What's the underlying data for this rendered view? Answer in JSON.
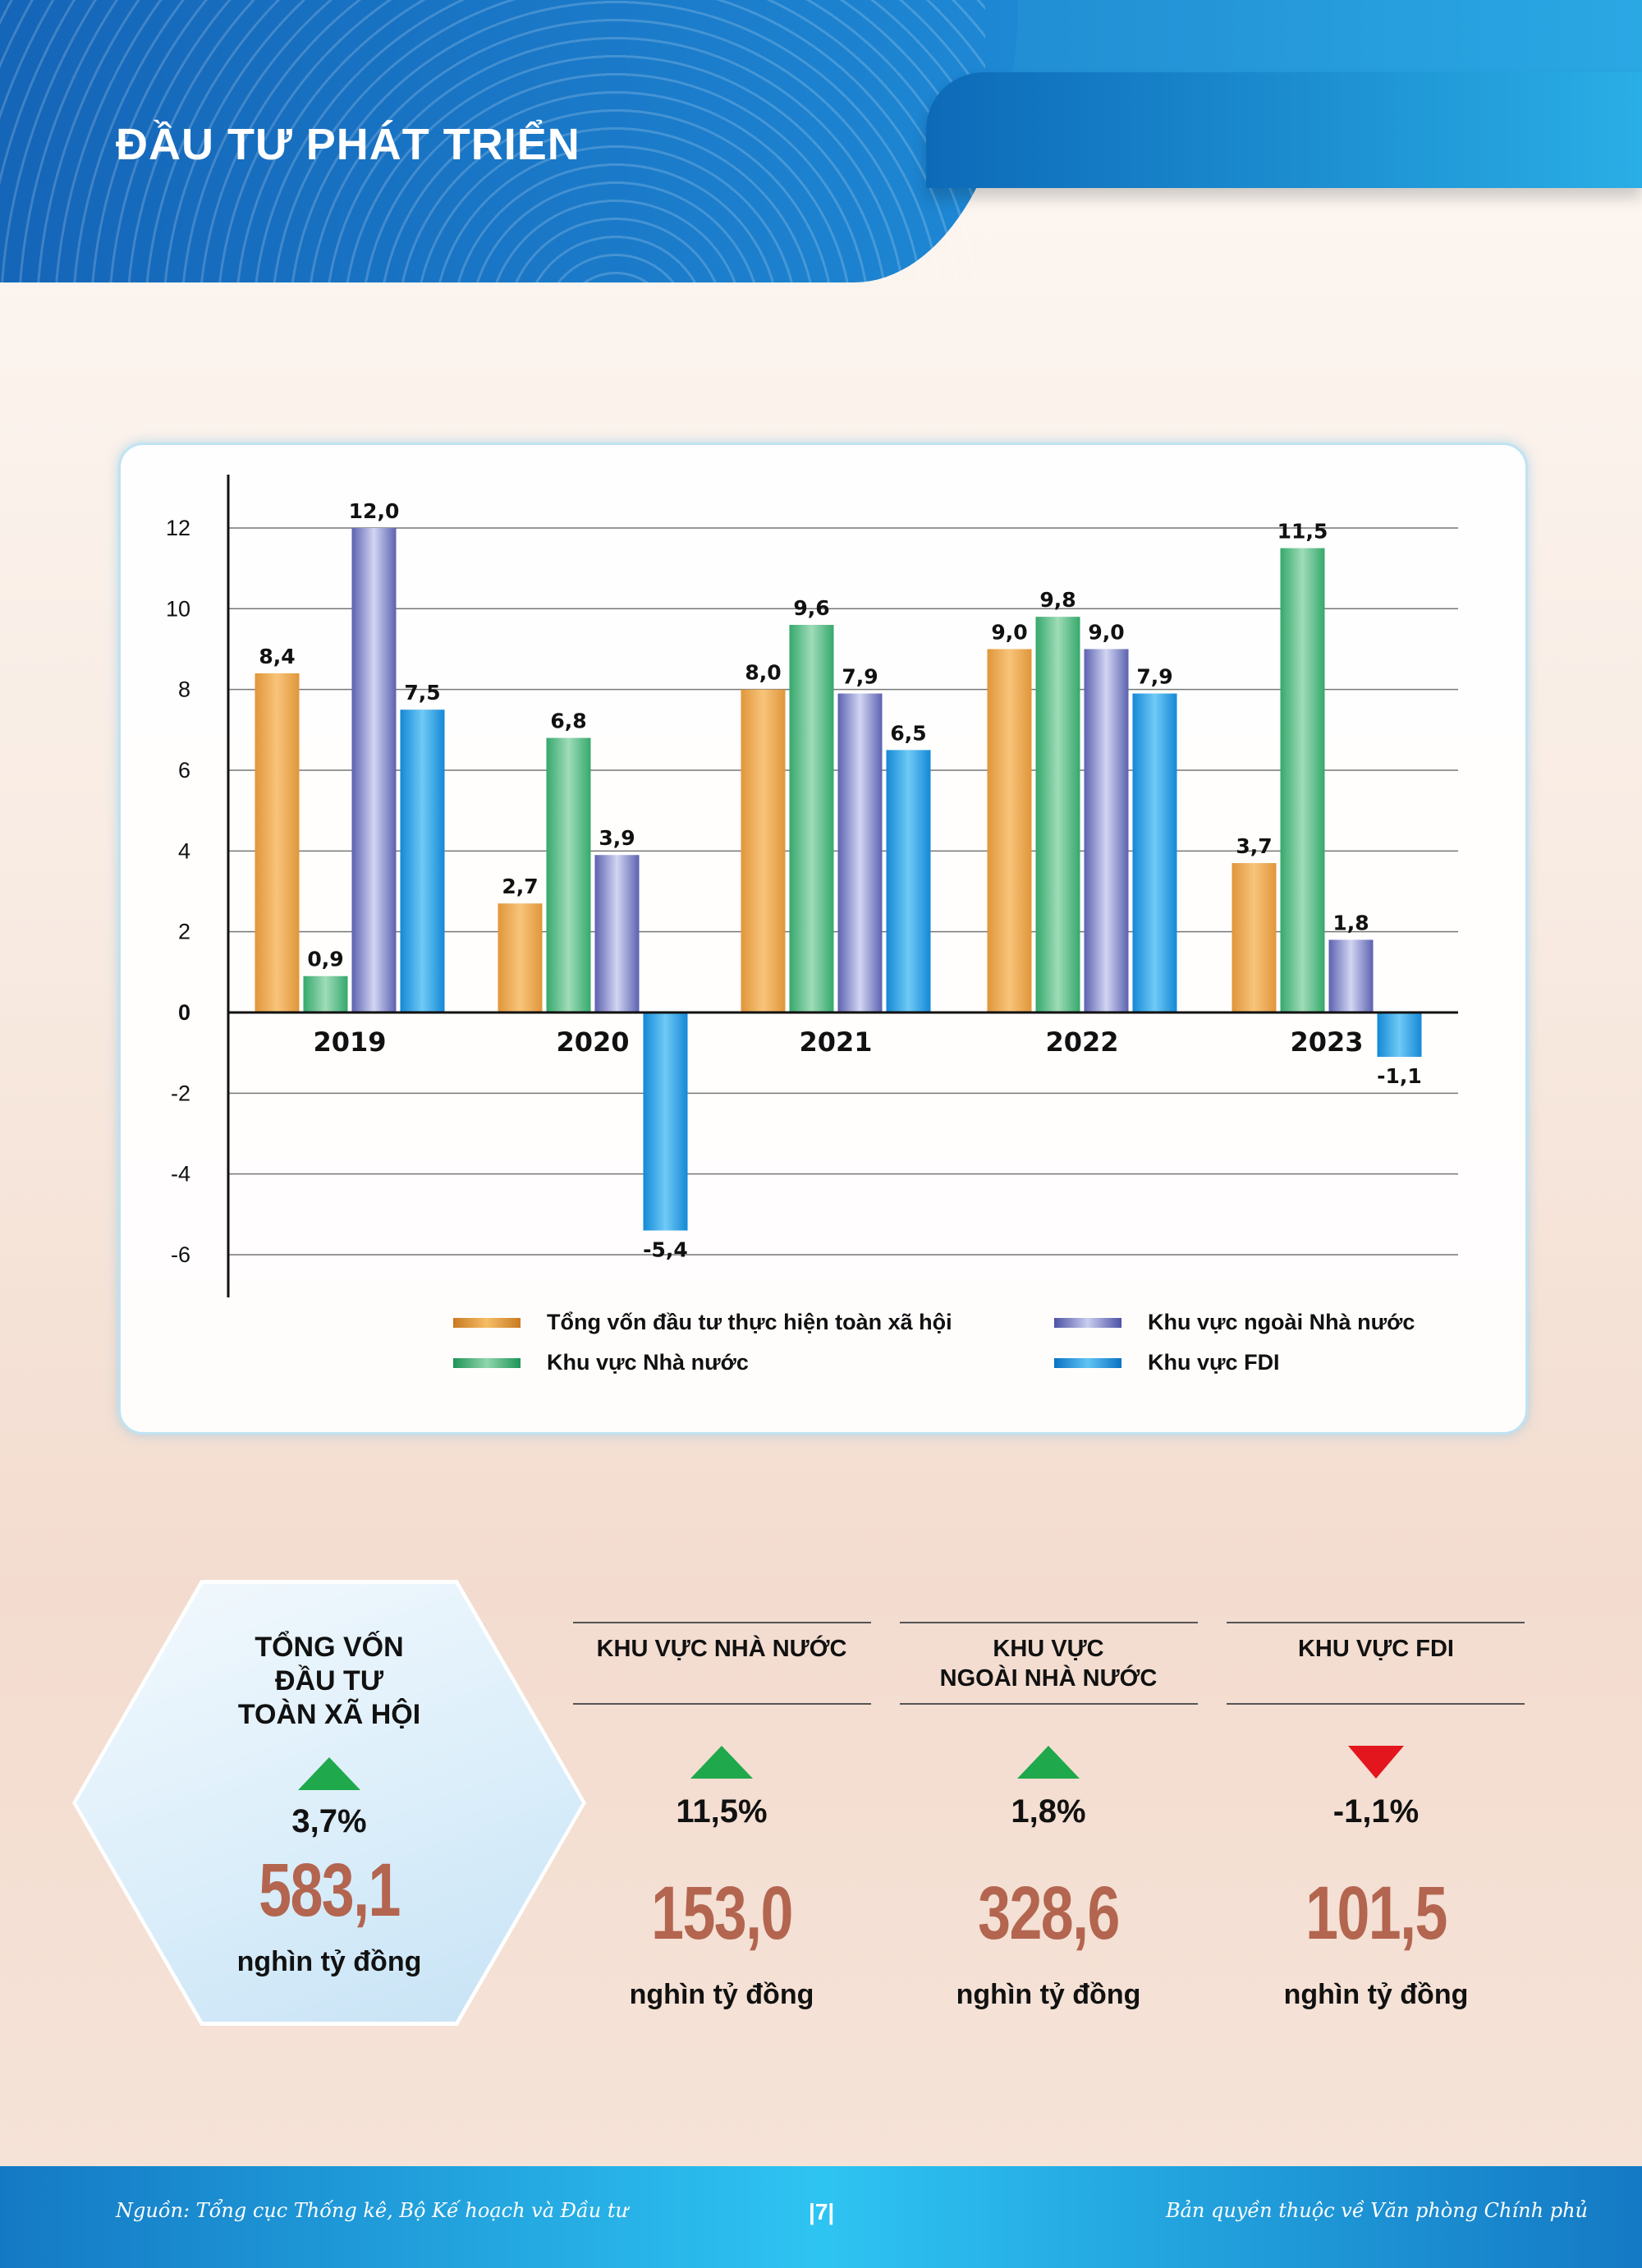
{
  "header": {
    "title": "ĐẦU TƯ PHÁT TRIỂN"
  },
  "chart_data": {
    "type": "bar",
    "categories": [
      "2019",
      "2020",
      "2021",
      "2022",
      "2023"
    ],
    "series": [
      {
        "name": "Tổng vốn đầu tư thực hiện toàn xã hội",
        "color": "#e0963a",
        "values": [
          8.4,
          2.7,
          8.0,
          9.0,
          3.7
        ],
        "labels": [
          "8,4",
          "2,7",
          "8,0",
          "9,0",
          "3,7"
        ]
      },
      {
        "name": "Khu vực Nhà nước",
        "color": "#35a86c",
        "values": [
          0.9,
          6.8,
          9.6,
          9.8,
          11.5
        ],
        "labels": [
          "0,9",
          "6,8",
          "9,6",
          "9,8",
          "11,5"
        ]
      },
      {
        "name": "Khu vực ngoài Nhà nước",
        "color": "#5c62b0",
        "values": [
          12.0,
          3.9,
          7.9,
          9.0,
          1.8
        ],
        "labels": [
          "12,0",
          "3,9",
          "7,9",
          "9,0",
          "1,8"
        ]
      },
      {
        "name": "Khu vực FDI",
        "color": "#1488d6",
        "values": [
          7.5,
          -5.4,
          6.5,
          7.9,
          -1.1
        ],
        "labels": [
          "7,5",
          "-5,4",
          "6,5",
          "7,9",
          "-1,1"
        ]
      }
    ],
    "yticks": [
      "-6",
      "-4",
      "-2",
      "0",
      "2",
      "4",
      "6",
      "8",
      "10",
      "12"
    ],
    "ylim": [
      -7,
      13.5
    ],
    "grid": true,
    "legend_position": "bottom"
  },
  "summary": {
    "total": {
      "title_lines": [
        "TỔNG VỐN",
        "ĐẦU TƯ",
        "TOÀN XÃ HỘI"
      ],
      "trend": "up",
      "percent": "3,7%",
      "value": "583,1",
      "unit": "nghìn tỷ đồng"
    },
    "columns": [
      {
        "title_lines": [
          "KHU VỰC NHÀ NƯỚC"
        ],
        "trend": "up",
        "percent": "11,5%",
        "value": "153,0",
        "unit": "nghìn tỷ đồng"
      },
      {
        "title_lines": [
          "KHU VỰC",
          "NGOÀI NHÀ NƯỚC"
        ],
        "trend": "up",
        "percent": "1,8%",
        "value": "328,6",
        "unit": "nghìn tỷ đồng"
      },
      {
        "title_lines": [
          "KHU VỰC FDI"
        ],
        "trend": "down",
        "percent": "-1,1%",
        "value": "101,5",
        "unit": "nghìn tỷ đồng"
      }
    ],
    "colors": {
      "up": "#1fa84c",
      "down": "#e4161d",
      "value": "#b3654f"
    }
  },
  "footer": {
    "source": "Nguồn: Tổng cục Thống kê, Bộ Kế hoạch và Đầu tư",
    "page": "|7|",
    "copyright": "Bản quyền thuộc về Văn phòng Chính phủ"
  }
}
